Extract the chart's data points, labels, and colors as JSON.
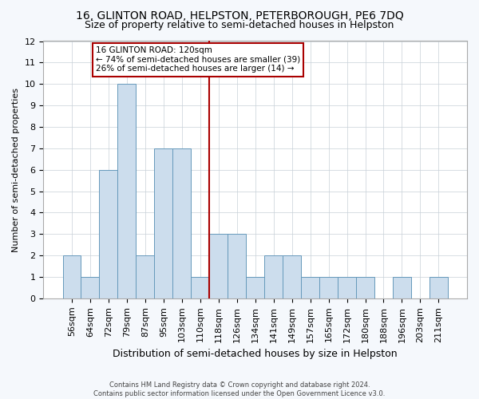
{
  "title": "16, GLINTON ROAD, HELPSTON, PETERBOROUGH, PE6 7DQ",
  "subtitle": "Size of property relative to semi-detached houses in Helpston",
  "xlabel": "Distribution of semi-detached houses by size in Helpston",
  "ylabel": "Number of semi-detached properties",
  "categories": [
    "56sqm",
    "64sqm",
    "72sqm",
    "79sqm",
    "87sqm",
    "95sqm",
    "103sqm",
    "110sqm",
    "118sqm",
    "126sqm",
    "134sqm",
    "141sqm",
    "149sqm",
    "157sqm",
    "165sqm",
    "172sqm",
    "180sqm",
    "188sqm",
    "196sqm",
    "203sqm",
    "211sqm"
  ],
  "values": [
    2,
    1,
    6,
    10,
    2,
    7,
    7,
    1,
    3,
    3,
    1,
    2,
    2,
    1,
    1,
    1,
    1,
    0,
    1,
    0,
    1
  ],
  "bar_color": "#ccdded",
  "bar_edge_color": "#6699bb",
  "highlight_line_index": 8,
  "highlight_line_color": "#aa0000",
  "annotation_text": "16 GLINTON ROAD: 120sqm\n← 74% of semi-detached houses are smaller (39)\n26% of semi-detached houses are larger (14) →",
  "annotation_box_color": "#aa0000",
  "ylim": [
    0,
    12
  ],
  "yticks": [
    0,
    1,
    2,
    3,
    4,
    5,
    6,
    7,
    8,
    9,
    10,
    11,
    12
  ],
  "footer_line1": "Contains HM Land Registry data © Crown copyright and database right 2024.",
  "footer_line2": "Contains public sector information licensed under the Open Government Licence v3.0.",
  "fig_bg": "#f5f8fc",
  "plot_bg": "#ffffff",
  "grid_color": "#c8d0d8",
  "title_fontsize": 10,
  "subtitle_fontsize": 9,
  "tick_fontsize": 8,
  "ylabel_fontsize": 8,
  "xlabel_fontsize": 9
}
